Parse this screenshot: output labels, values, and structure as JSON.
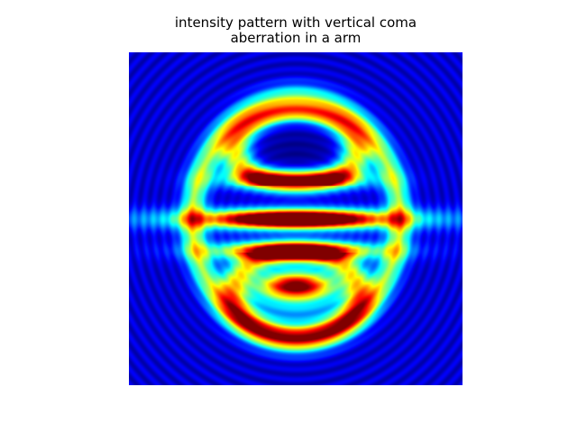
{
  "title": {
    "line1": "intensity pattern with vertical coma",
    "line2": "aberration in a arm"
  },
  "chart_data": {
    "type": "heatmap",
    "title": "intensity pattern with vertical coma aberration in a arm",
    "colormap": "jet",
    "axes_visible": false,
    "grid": false,
    "features": [
      {
        "name": "central fringe",
        "intensity": 1.0
      },
      {
        "name": "upper inner fringe",
        "intensity": 0.85
      },
      {
        "name": "lower inner fringe",
        "intensity": 0.9
      },
      {
        "name": "upper ring",
        "intensity": 0.6
      },
      {
        "name": "lower ring",
        "intensity": 0.6
      },
      {
        "name": "lower core",
        "intensity": 0.72
      },
      {
        "name": "upper core",
        "intensity": 0.05
      }
    ]
  }
}
